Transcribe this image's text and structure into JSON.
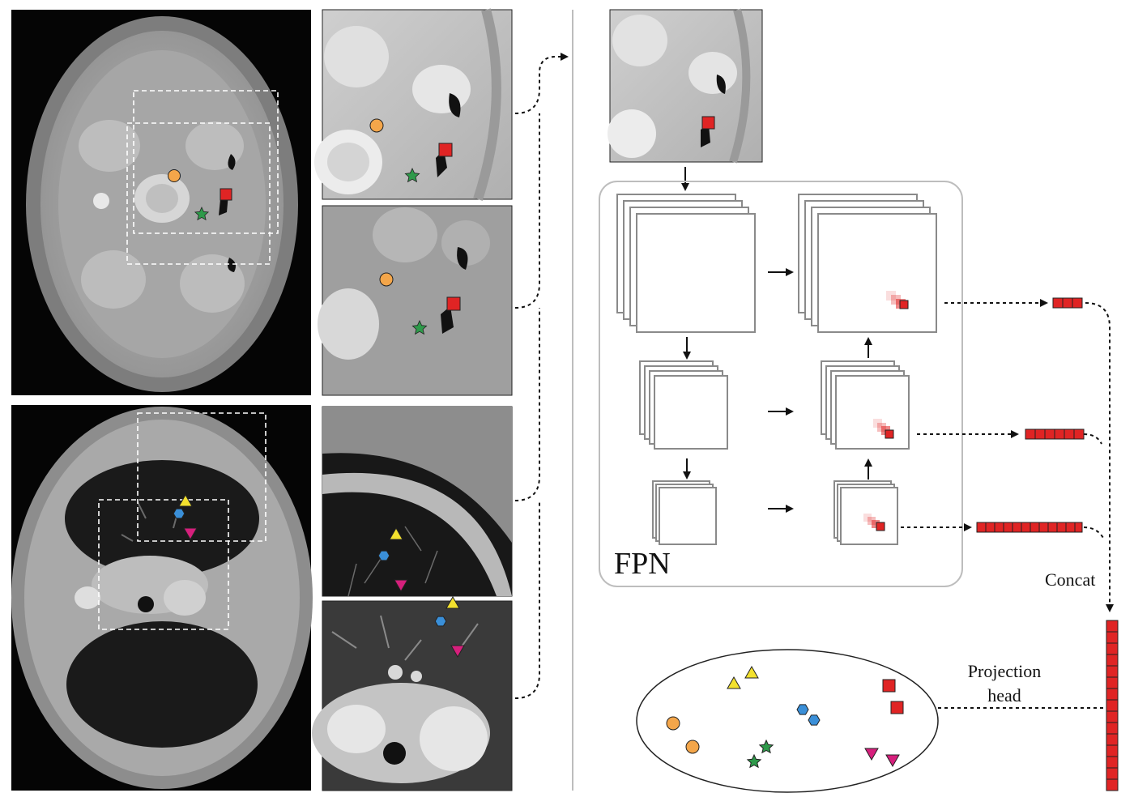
{
  "labels": {
    "fpn": "FPN",
    "concat": "Concat",
    "projection_line1": "Projection",
    "projection_line2": "head"
  },
  "colors": {
    "red_square": "#e02424",
    "orange_circle": "#f4a64a",
    "green_star": "#2e9a4a",
    "yellow_triangle": "#f3e12e",
    "blue_hexagon": "#3a8fd8",
    "magenta_triangle": "#d61f7c"
  }
}
